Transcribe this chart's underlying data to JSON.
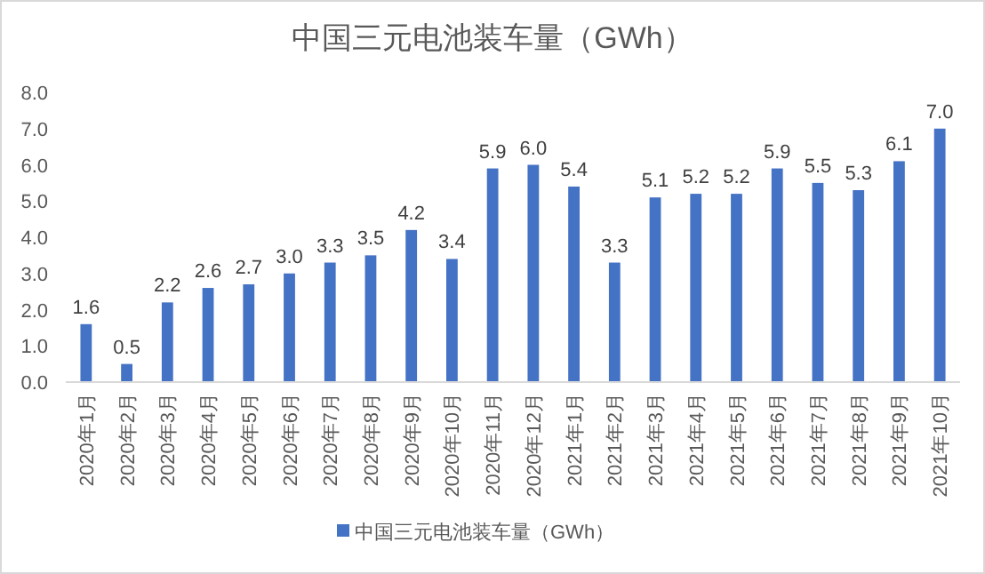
{
  "chart_data": {
    "type": "bar",
    "title": "中国三元电池装车量（GWh）",
    "categories": [
      "2020年1月",
      "2020年2月",
      "2020年3月",
      "2020年4月",
      "2020年5月",
      "2020年6月",
      "2020年7月",
      "2020年8月",
      "2020年9月",
      "2020年10月",
      "2020年11月",
      "2020年12月",
      "2021年1月",
      "2021年2月",
      "2021年3月",
      "2021年4月",
      "2021年5月",
      "2021年6月",
      "2021年7月",
      "2021年8月",
      "2021年9月",
      "2021年10月"
    ],
    "series": [
      {
        "name": "中国三元电池装车量（GWh）",
        "color": "#4472c4",
        "values": [
          1.6,
          0.5,
          2.2,
          2.6,
          2.7,
          3.0,
          3.3,
          3.5,
          4.2,
          3.4,
          5.9,
          6.0,
          5.4,
          3.3,
          5.1,
          5.2,
          5.2,
          5.9,
          5.5,
          5.3,
          6.1,
          7.0
        ],
        "value_labels": [
          "1.6",
          "0.5",
          "2.2",
          "2.6",
          "2.7",
          "3.0",
          "3.3",
          "3.5",
          "4.2",
          "3.4",
          "5.9",
          "6.0",
          "5.4",
          "3.3",
          "5.1",
          "5.2",
          "5.2",
          "5.9",
          "5.5",
          "5.3",
          "6.1",
          "7.0"
        ]
      }
    ],
    "ylim": [
      0,
      8
    ],
    "yticks": [
      {
        "value": 0,
        "label": "0.0"
      },
      {
        "value": 1,
        "label": "1.0"
      },
      {
        "value": 2,
        "label": "2.0"
      },
      {
        "value": 3,
        "label": "3.0"
      },
      {
        "value": 4,
        "label": "4.0"
      },
      {
        "value": 5,
        "label": "5.0"
      },
      {
        "value": 6,
        "label": "6.0"
      },
      {
        "value": 7,
        "label": "7.0"
      },
      {
        "value": 8,
        "label": "8.0"
      }
    ],
    "legend": "bottom"
  }
}
